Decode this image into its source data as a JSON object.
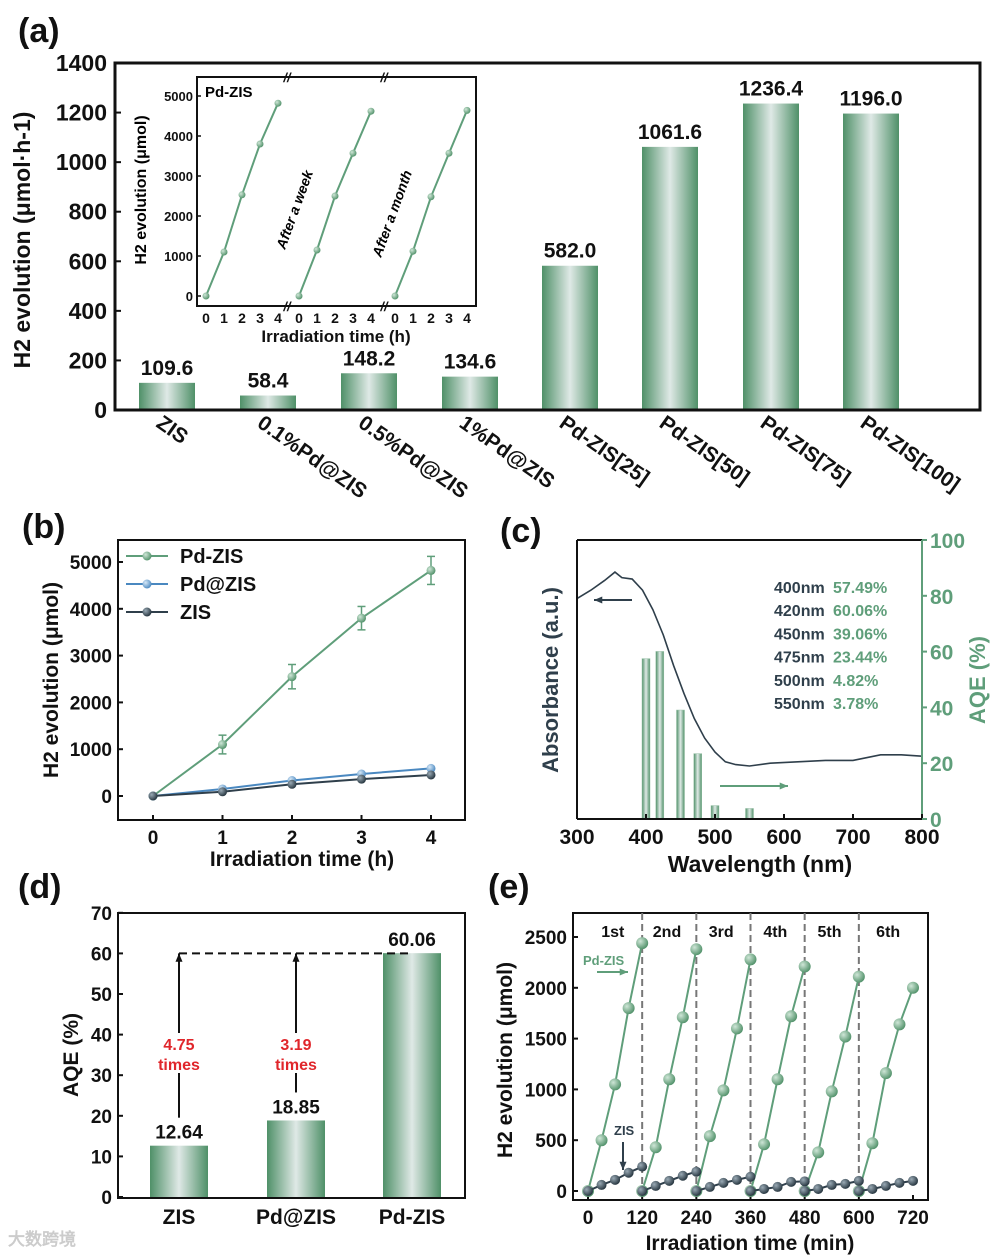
{
  "colors": {
    "green": "#5f9e7a",
    "dark": "#2f3f4b",
    "red": "#e0262b",
    "bar_edge": "#4f9068",
    "bar_center": "#dfe9e6"
  },
  "chart_data": [
    {
      "panel": "(a)",
      "type": "bar",
      "ylabel": "H2 evolution (μmol·h-1)",
      "ylim": [
        0,
        1400
      ],
      "yticks": [
        0,
        200,
        400,
        600,
        800,
        1000,
        1200,
        1400
      ],
      "categories": [
        "ZIS",
        "0.1%Pd@ZIS",
        "0.5%Pd@ZIS",
        "1%Pd@ZIS",
        "Pd-ZIS[25]",
        "Pd-ZIS[50]",
        "Pd-ZIS[75]",
        "Pd-ZIS[100]"
      ],
      "values": [
        109.6,
        58.4,
        148.2,
        134.6,
        582.0,
        1061.6,
        1236.4,
        1196.0
      ],
      "labels": [
        "109.6",
        "58.4",
        "148.2",
        "134.6",
        "582.0",
        "1061.6",
        "1236.4",
        "1196.0"
      ],
      "inset": {
        "type": "line",
        "title": "Pd-ZIS",
        "xlabel": "Irradiation time (h)",
        "ylabel": "H2 evolution (μmol)",
        "ylim": [
          0,
          5000
        ],
        "yticks": [
          0,
          1000,
          2000,
          3000,
          4000,
          5000
        ],
        "x": [
          0,
          1,
          2,
          3,
          4
        ],
        "segments": [
          {
            "name": "",
            "values": [
              0,
              1100,
              2530,
              3800,
              4820
            ]
          },
          {
            "name": "After a week",
            "values": [
              0,
              1150,
              2500,
              3570,
              4620
            ]
          },
          {
            "name": "After a month",
            "values": [
              0,
              1120,
              2480,
              3570,
              4640
            ]
          }
        ]
      }
    },
    {
      "panel": "(b)",
      "type": "line",
      "xlabel": "Irradiation time (h)",
      "ylabel": "H2 evolution (μmol)",
      "x": [
        0,
        1,
        2,
        3,
        4
      ],
      "xlim": [
        0,
        4
      ],
      "ylim": [
        0,
        5000
      ],
      "yticks": [
        0,
        1000,
        2000,
        3000,
        4000,
        5000
      ],
      "legend": "top-left",
      "series": [
        {
          "name": "Pd-ZIS",
          "values": [
            0,
            1100,
            2550,
            3800,
            4820
          ],
          "errors": [
            0,
            200,
            260,
            250,
            300
          ]
        },
        {
          "name": "Pd@ZIS",
          "values": [
            0,
            150,
            330,
            470,
            590
          ],
          "errors": [
            0,
            0,
            0,
            0,
            0
          ]
        },
        {
          "name": "ZIS",
          "values": [
            0,
            90,
            250,
            360,
            450
          ],
          "errors": [
            0,
            0,
            0,
            0,
            0
          ]
        }
      ]
    },
    {
      "panel": "(c)",
      "type": "bar+line",
      "xlabel": "Wavelength (nm)",
      "ylabel_left": "Absorbance (a.u.)",
      "ylabel_right": "AQE (%)",
      "xlim": [
        300,
        800
      ],
      "xticks": [
        300,
        400,
        500,
        600,
        700,
        800
      ],
      "ylim_right": [
        0,
        100
      ],
      "yticks_right": [
        0,
        20,
        40,
        60,
        80,
        100
      ],
      "absorbance": {
        "x": [
          300,
          320,
          340,
          355,
          365,
          380,
          395,
          410,
          425,
          440,
          455,
          470,
          485,
          500,
          515,
          530,
          550,
          580,
          620,
          660,
          700,
          740,
          770,
          800
        ],
        "y": [
          79,
          82,
          85.5,
          88.5,
          86.5,
          86,
          82,
          75,
          66,
          55,
          45,
          36,
          29,
          24,
          20.5,
          19.5,
          19,
          20,
          20.5,
          21,
          21,
          23,
          23,
          22.5
        ]
      },
      "aqe": {
        "wavelengths": [
          400,
          420,
          450,
          475,
          500,
          550
        ],
        "values": [
          57.49,
          60.06,
          39.06,
          23.44,
          4.82,
          3.78
        ],
        "labels": [
          [
            "400nm",
            "57.49%"
          ],
          [
            "420nm",
            "60.06%"
          ],
          [
            "450nm",
            "39.06%"
          ],
          [
            "475nm",
            "23.44%"
          ],
          [
            "500nm",
            "4.82%"
          ],
          [
            "550nm",
            "3.78%"
          ]
        ]
      }
    },
    {
      "panel": "(d)",
      "type": "bar",
      "ylabel": "AQE (%)",
      "ylim": [
        0,
        70
      ],
      "yticks": [
        0,
        10,
        20,
        30,
        40,
        50,
        60,
        70
      ],
      "categories": [
        "ZIS",
        "Pd@ZIS",
        "Pd-ZIS"
      ],
      "values": [
        12.64,
        18.85,
        60.06
      ],
      "labels": [
        "12.64",
        "18.85",
        "60.06"
      ],
      "annotations": [
        [
          "4.75",
          "times"
        ],
        [
          "3.19",
          "times"
        ]
      ]
    },
    {
      "panel": "(e)",
      "type": "line",
      "xlabel": "Irradiation time (min)",
      "ylabel": "H2 evolution (μmol)",
      "xlim": [
        0,
        720
      ],
      "xticks": [
        0,
        120,
        240,
        360,
        480,
        600,
        720
      ],
      "ylim": [
        0,
        2500
      ],
      "yticks": [
        0,
        500,
        1000,
        1500,
        2000,
        2500
      ],
      "cycles": [
        "1st",
        "2nd",
        "3rd",
        "4th",
        "5th",
        "6th"
      ],
      "cycle_x": [
        0,
        30,
        60,
        90,
        120
      ],
      "series": [
        {
          "name": "Pd-ZIS",
          "values": [
            [
              0,
              500,
              1050,
              1800,
              2440
            ],
            [
              0,
              430,
              1100,
              1710,
              2380
            ],
            [
              0,
              540,
              990,
              1600,
              2280
            ],
            [
              0,
              460,
              1100,
              1720,
              2210
            ],
            [
              0,
              380,
              980,
              1520,
              2110
            ],
            [
              0,
              470,
              1160,
              1640,
              2000
            ]
          ]
        },
        {
          "name": "ZIS",
          "values": [
            [
              0,
              60,
              110,
              180,
              240
            ],
            [
              0,
              50,
              100,
              150,
              190
            ],
            [
              0,
              40,
              80,
              110,
              140
            ],
            [
              0,
              20,
              40,
              90,
              95
            ],
            [
              0,
              20,
              60,
              70,
              100
            ],
            [
              0,
              20,
              50,
              80,
              100
            ]
          ]
        }
      ]
    }
  ],
  "watermark": "大数跨境"
}
